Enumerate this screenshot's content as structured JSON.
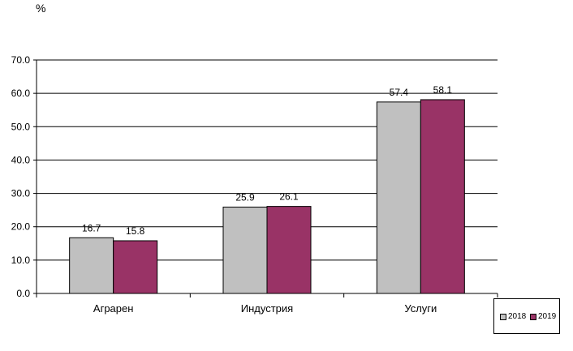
{
  "unit": "%",
  "chart_data": {
    "type": "bar",
    "categories": [
      "Аграрен",
      "Индустрия",
      "Услуги"
    ],
    "series": [
      {
        "name": "2018",
        "values": [
          16.7,
          25.9,
          57.4
        ],
        "color": "#c0c0c0"
      },
      {
        "name": "2019",
        "values": [
          15.8,
          26.1,
          58.1
        ],
        "color": "#993366"
      }
    ],
    "ylim": [
      0,
      70
    ],
    "yticks": [
      "0.0",
      "10.0",
      "20.0",
      "30.0",
      "40.0",
      "50.0",
      "60.0",
      "70.0"
    ],
    "grid": true,
    "legend": "bottom-right",
    "data_labels": true
  }
}
